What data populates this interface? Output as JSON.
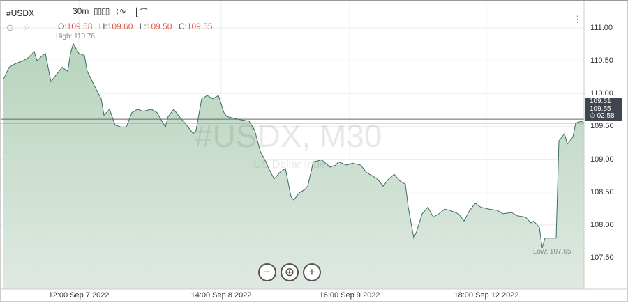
{
  "header": {
    "symbol": "#USDX",
    "timeframe": "30m",
    "tools": [
      "candles-icon",
      "indicators-icon",
      "log-scale-icon"
    ]
  },
  "ohlc": {
    "o_label": "O:",
    "o": "109.58",
    "h_label": "H:",
    "h": "109.60",
    "l_label": "L:",
    "l": "109.50",
    "c_label": "C:",
    "c": "109.55"
  },
  "high_label": "High: 110.76",
  "low_label": "Low: 107.65",
  "watermark": {
    "title": "#USDX, M30",
    "subtitle": "US Dollar Index"
  },
  "price_tag": {
    "bid": "109.61",
    "price": "109.55",
    "timer": "02:58"
  },
  "colors": {
    "line": "#3e6b63",
    "fill": "#b7d4bd",
    "ohlc_value": "#e45a4a",
    "tag_bg": "#3f4650"
  },
  "chart_data": {
    "type": "area",
    "yticks": [
      "111.00",
      "110.50",
      "110.00",
      "109.50",
      "109.00",
      "108.50",
      "108.00",
      "107.50"
    ],
    "ytick_values": [
      111,
      110.5,
      110,
      109.5,
      109,
      108.5,
      108,
      107.5
    ],
    "xticks": [
      "12:00 Sep 7 2022",
      "14:00 Sep 8 2022",
      "16:00 Sep 9 2022",
      "18:00 Sep 12 2022"
    ],
    "xtick_bars": [
      28,
      79,
      125,
      174
    ],
    "hlines": [
      109.61,
      109.55
    ],
    "points": [
      [
        1,
        110.22
      ],
      [
        3,
        110.4
      ],
      [
        5,
        110.45
      ],
      [
        8,
        110.5
      ],
      [
        10,
        110.55
      ],
      [
        12,
        110.64
      ],
      [
        13,
        110.5
      ],
      [
        15,
        110.58
      ],
      [
        16,
        110.61
      ],
      [
        18,
        110.18
      ],
      [
        20,
        110.29
      ],
      [
        22,
        110.4
      ],
      [
        24,
        110.34
      ],
      [
        25,
        110.61
      ],
      [
        26,
        110.76
      ],
      [
        28,
        110.61
      ],
      [
        30,
        110.58
      ],
      [
        31,
        110.34
      ],
      [
        34,
        110.08
      ],
      [
        36,
        109.92
      ],
      [
        37,
        109.67
      ],
      [
        39,
        109.76
      ],
      [
        41,
        109.52
      ],
      [
        43,
        109.49
      ],
      [
        45,
        109.49
      ],
      [
        47,
        109.71
      ],
      [
        49,
        109.76
      ],
      [
        51,
        109.73
      ],
      [
        54,
        109.76
      ],
      [
        56,
        109.71
      ],
      [
        59,
        109.49
      ],
      [
        60,
        109.65
      ],
      [
        62,
        109.76
      ],
      [
        64,
        109.65
      ],
      [
        66,
        109.55
      ],
      [
        69,
        109.39
      ],
      [
        70,
        109.44
      ],
      [
        72,
        109.92
      ],
      [
        74,
        109.97
      ],
      [
        76,
        109.92
      ],
      [
        78,
        109.97
      ],
      [
        80,
        109.71
      ],
      [
        81,
        109.65
      ],
      [
        84,
        109.62
      ],
      [
        86,
        109.6
      ],
      [
        89,
        109.58
      ],
      [
        91,
        109.44
      ],
      [
        93,
        109.12
      ],
      [
        95,
        108.96
      ],
      [
        96,
        108.86
      ],
      [
        98,
        108.7
      ],
      [
        100,
        108.8
      ],
      [
        102,
        108.86
      ],
      [
        104,
        108.43
      ],
      [
        105,
        108.38
      ],
      [
        107,
        108.49
      ],
      [
        109,
        108.54
      ],
      [
        110,
        108.59
      ],
      [
        112,
        108.96
      ],
      [
        115,
        108.99
      ],
      [
        118,
        108.88
      ],
      [
        120,
        108.91
      ],
      [
        121,
        108.96
      ],
      [
        124,
        108.91
      ],
      [
        126,
        108.94
      ],
      [
        129,
        108.91
      ],
      [
        131,
        108.8
      ],
      [
        133,
        108.75
      ],
      [
        135,
        108.7
      ],
      [
        137,
        108.59
      ],
      [
        139,
        108.7
      ],
      [
        141,
        108.77
      ],
      [
        143,
        108.67
      ],
      [
        145,
        108.62
      ],
      [
        146,
        108.27
      ],
      [
        148,
        107.8
      ],
      [
        149,
        107.9
      ],
      [
        151,
        108.17
      ],
      [
        153,
        108.27
      ],
      [
        155,
        108.12
      ],
      [
        157,
        108.17
      ],
      [
        159,
        108.24
      ],
      [
        161,
        108.22
      ],
      [
        164,
        108.17
      ],
      [
        166,
        108.06
      ],
      [
        168,
        108.22
      ],
      [
        170,
        108.33
      ],
      [
        172,
        108.27
      ],
      [
        175,
        108.24
      ],
      [
        178,
        108.22
      ],
      [
        180,
        108.17
      ],
      [
        183,
        108.19
      ],
      [
        185,
        108.14
      ],
      [
        188,
        108.12
      ],
      [
        190,
        108.03
      ],
      [
        191,
        108.06
      ],
      [
        193,
        107.96
      ],
      [
        194,
        107.65
      ],
      [
        195,
        107.8
      ],
      [
        199,
        107.8
      ],
      [
        200,
        109.28
      ],
      [
        202,
        109.39
      ],
      [
        203,
        109.23
      ],
      [
        205,
        109.34
      ],
      [
        206,
        109.55
      ],
      [
        208,
        109.58
      ],
      [
        209,
        109.55
      ]
    ]
  }
}
